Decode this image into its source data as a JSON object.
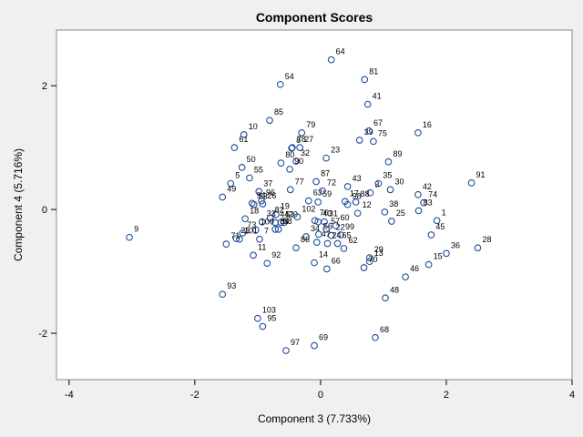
{
  "chart_data": {
    "type": "scatter",
    "title": "Component Scores",
    "xlabel": "Component 3 (7.733%)",
    "ylabel": "Component 4 (5.716%)",
    "xlim": [
      -4.2,
      4.0
    ],
    "ylim": [
      -2.75,
      2.9
    ],
    "xticks": [
      -4,
      -2,
      0,
      2,
      4
    ],
    "yticks": [
      -2,
      0,
      2
    ],
    "xtick_labels": [
      "-4",
      "-2",
      "0",
      "2",
      "4"
    ],
    "ytick_labels": [
      "-2",
      "0",
      "2"
    ],
    "grid": false,
    "marker": "open-circle",
    "marker_color": "#1f4e9c",
    "points": [
      {
        "label": "1",
        "x": 1.85,
        "y": -0.18
      },
      {
        "label": "3",
        "x": 0.79,
        "y": 0.27
      },
      {
        "label": "5",
        "x": -1.43,
        "y": 0.42
      },
      {
        "label": "7",
        "x": -0.97,
        "y": -0.48
      },
      {
        "label": "8",
        "x": -0.46,
        "y": 0.99
      },
      {
        "label": "9",
        "x": -3.04,
        "y": -0.45
      },
      {
        "label": "10",
        "x": -1.22,
        "y": 1.21
      },
      {
        "label": "11",
        "x": -1.07,
        "y": -0.74
      },
      {
        "label": "12",
        "x": 0.59,
        "y": -0.06
      },
      {
        "label": "13",
        "x": 0.78,
        "y": -0.84
      },
      {
        "label": "14",
        "x": -0.1,
        "y": -0.86
      },
      {
        "label": "15",
        "x": 1.72,
        "y": -0.89
      },
      {
        "label": "16",
        "x": 1.55,
        "y": 1.24
      },
      {
        "label": "17",
        "x": 0.39,
        "y": 0.13
      },
      {
        "label": "18",
        "x": -1.2,
        "y": -0.15
      },
      {
        "label": "19",
        "x": -0.71,
        "y": -0.08
      },
      {
        "label": "20",
        "x": -0.58,
        "y": -0.21
      },
      {
        "label": "21",
        "x": -1.34,
        "y": -0.47
      },
      {
        "label": "22",
        "x": 0.17,
        "y": -0.42
      },
      {
        "label": "23",
        "x": 0.09,
        "y": 0.83
      },
      {
        "label": "24",
        "x": 0.11,
        "y": -0.55
      },
      {
        "label": "25",
        "x": 1.13,
        "y": -0.19
      },
      {
        "label": "26",
        "x": -0.92,
        "y": 0.09
      },
      {
        "label": "27",
        "x": -0.33,
        "y": 1.0
      },
      {
        "label": "28",
        "x": 2.5,
        "y": -0.62
      },
      {
        "label": "29",
        "x": 0.78,
        "y": -0.78
      },
      {
        "label": "30",
        "x": 1.11,
        "y": 0.32
      },
      {
        "label": "31",
        "x": 0.06,
        "y": -0.2
      },
      {
        "label": "32",
        "x": -0.39,
        "y": 0.78
      },
      {
        "label": "33",
        "x": -0.93,
        "y": -0.2
      },
      {
        "label": "34",
        "x": -0.23,
        "y": -0.44
      },
      {
        "label": "35",
        "x": 0.92,
        "y": 0.42
      },
      {
        "label": "36",
        "x": 2.0,
        "y": -0.71
      },
      {
        "label": "37",
        "x": -0.98,
        "y": 0.29
      },
      {
        "label": "38",
        "x": 1.02,
        "y": -0.04
      },
      {
        "label": "39",
        "x": 0.62,
        "y": 1.12
      },
      {
        "label": "40",
        "x": -0.04,
        "y": -0.2
      },
      {
        "label": "41",
        "x": 0.75,
        "y": 1.7
      },
      {
        "label": "42",
        "x": 1.55,
        "y": 0.24
      },
      {
        "label": "43",
        "x": 0.43,
        "y": 0.37
      },
      {
        "label": "44",
        "x": -0.72,
        "y": -0.21
      },
      {
        "label": "45",
        "x": 1.76,
        "y": -0.41
      },
      {
        "label": "46",
        "x": 1.35,
        "y": -1.09
      },
      {
        "label": "47",
        "x": -0.06,
        "y": -0.53
      },
      {
        "label": "48",
        "x": 1.03,
        "y": -1.43
      },
      {
        "label": "49",
        "x": -1.56,
        "y": 0.2
      },
      {
        "label": "50",
        "x": -1.25,
        "y": 0.68
      },
      {
        "label": "51",
        "x": -0.63,
        "y": -0.21
      },
      {
        "label": "53",
        "x": -1.06,
        "y": 0.08
      },
      {
        "label": "54",
        "x": -0.64,
        "y": 2.02
      },
      {
        "label": "55",
        "x": -1.13,
        "y": 0.51
      },
      {
        "label": "56",
        "x": -0.03,
        "y": -0.4
      },
      {
        "label": "57",
        "x": 0.09,
        "y": -0.32
      },
      {
        "label": "58",
        "x": -0.67,
        "y": -0.32
      },
      {
        "label": "59",
        "x": -0.04,
        "y": 0.12
      },
      {
        "label": "60",
        "x": 0.24,
        "y": -0.26
      },
      {
        "label": "61",
        "x": -1.37,
        "y": 1.0
      },
      {
        "label": "62",
        "x": 0.37,
        "y": -0.63
      },
      {
        "label": "63",
        "x": -0.19,
        "y": 0.14
      },
      {
        "label": "64",
        "x": 0.17,
        "y": 2.42
      },
      {
        "label": "65",
        "x": 0.27,
        "y": -0.55
      },
      {
        "label": "66",
        "x": 0.1,
        "y": -0.96
      },
      {
        "label": "67",
        "x": 0.77,
        "y": 1.27
      },
      {
        "label": "68",
        "x": 0.87,
        "y": -2.07
      },
      {
        "label": "69",
        "x": -0.1,
        "y": -2.2
      },
      {
        "label": "70",
        "x": 0.69,
        "y": -0.94
      },
      {
        "label": "71",
        "x": -1.5,
        "y": -0.56
      },
      {
        "label": "72",
        "x": 0.03,
        "y": 0.3
      },
      {
        "label": "73",
        "x": -1.24,
        "y": -0.38
      },
      {
        "label": "74",
        "x": 1.64,
        "y": 0.11
      },
      {
        "label": "75",
        "x": 0.84,
        "y": 1.1
      },
      {
        "label": "76",
        "x": -0.09,
        "y": -0.18
      },
      {
        "label": "77",
        "x": -0.48,
        "y": 0.32
      },
      {
        "label": "78",
        "x": -0.45,
        "y": 1.0
      },
      {
        "label": "79",
        "x": -0.3,
        "y": 1.24
      },
      {
        "label": "80",
        "x": -0.63,
        "y": 0.75
      },
      {
        "label": "81",
        "x": 0.7,
        "y": 2.1
      },
      {
        "label": "82",
        "x": -0.8,
        "y": -0.14
      },
      {
        "label": "83",
        "x": 1.56,
        "y": -0.02
      },
      {
        "label": "84",
        "x": -0.72,
        "y": -0.32
      },
      {
        "label": "85",
        "x": -0.81,
        "y": 1.44
      },
      {
        "label": "86",
        "x": -0.39,
        "y": -0.62
      },
      {
        "label": "87",
        "x": -0.07,
        "y": 0.45
      },
      {
        "label": "88",
        "x": 0.56,
        "y": 0.12
      },
      {
        "label": "89",
        "x": 1.08,
        "y": 0.77
      },
      {
        "label": "90",
        "x": -0.49,
        "y": 0.65
      },
      {
        "label": "91",
        "x": 2.4,
        "y": 0.43
      },
      {
        "label": "92",
        "x": -0.85,
        "y": -0.87
      },
      {
        "label": "93",
        "x": -1.56,
        "y": -1.37
      },
      {
        "label": "94",
        "x": -1.09,
        "y": 0.1
      },
      {
        "label": "95",
        "x": -0.92,
        "y": -1.89
      },
      {
        "label": "96",
        "x": -0.94,
        "y": 0.14
      },
      {
        "label": "97",
        "x": -0.55,
        "y": -2.28
      },
      {
        "label": "98",
        "x": 0.43,
        "y": 0.08
      },
      {
        "label": "99",
        "x": 0.32,
        "y": -0.41
      },
      {
        "label": "100",
        "x": -1.03,
        "y": -0.33
      },
      {
        "label": "101",
        "x": -1.29,
        "y": -0.48
      },
      {
        "label": "102",
        "x": -0.37,
        "y": -0.12
      },
      {
        "label": "103",
        "x": -1.0,
        "y": -1.76
      }
    ]
  }
}
